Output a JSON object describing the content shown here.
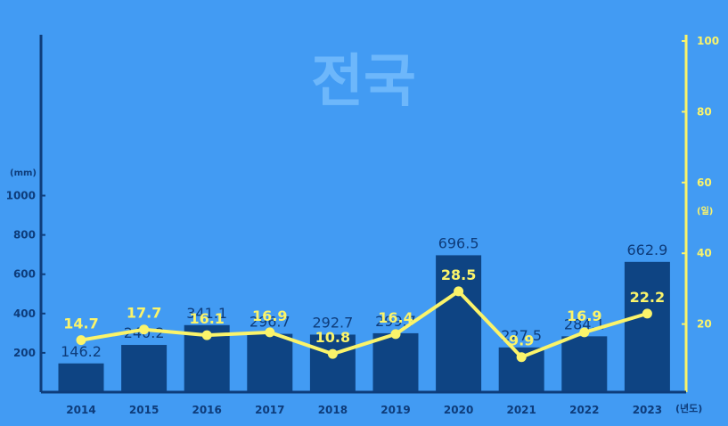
{
  "watermark": "전국",
  "left_axis_unit": "(mm)",
  "right_axis_unit": "(일)",
  "x_axis_unit": "(년도)",
  "colors": {
    "background": "#429bf3",
    "bar": "#0e4483",
    "line": "#fbf46a",
    "left_axis": "#0e3c7a",
    "right_axis": "#fbf46a",
    "watermark": "#6db7fb"
  },
  "chart_data": {
    "type": "bar+line",
    "categories": [
      "2014",
      "2015",
      "2016",
      "2017",
      "2018",
      "2019",
      "2020",
      "2021",
      "2022",
      "2023"
    ],
    "series": [
      {
        "name": "",
        "type": "bar",
        "axis": "left",
        "unit": "(mm)",
        "values": [
          146.2,
          240.2,
          341.1,
          296.7,
          292.7,
          299.7,
          696.5,
          227.5,
          284.1,
          662.9
        ],
        "labels": [
          "146.2",
          "240.2",
          "341.1",
          "296.7",
          "292.7",
          "299.7",
          "696.5",
          "227.5",
          "284.1",
          "662.9"
        ]
      },
      {
        "name": "",
        "type": "line",
        "axis": "right",
        "unit": "(일)",
        "values": [
          14.7,
          17.7,
          16.1,
          16.9,
          10.8,
          16.4,
          28.5,
          9.9,
          16.9,
          22.2
        ],
        "labels": [
          "14.7",
          "17.7",
          "16.1",
          "16.9",
          "10.8",
          "16.4",
          "28.5",
          "9.9",
          "16.9",
          "22.2"
        ]
      }
    ],
    "left_axis": {
      "range": [
        0,
        1000
      ],
      "ticks": [
        "200",
        "400",
        "600",
        "800",
        "1000"
      ]
    },
    "right_axis": {
      "range": [
        0,
        100
      ],
      "ticks": [
        "20",
        "40",
        "60",
        "80",
        "100"
      ]
    },
    "grid": false,
    "legend": "none"
  }
}
